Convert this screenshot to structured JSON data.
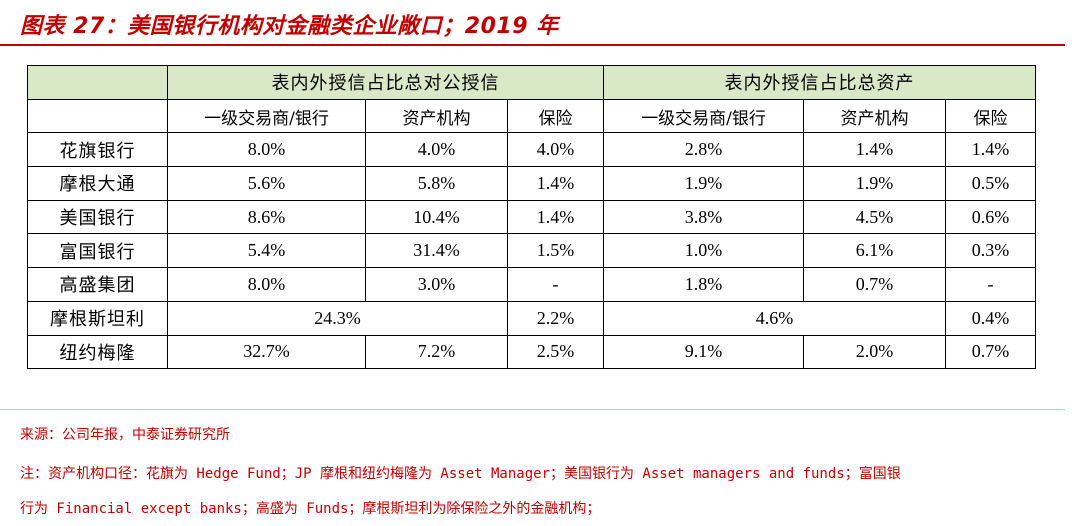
{
  "title": "图表 27：美国银行机构对金融类企业敞口；2019 年",
  "table": {
    "group_headers": [
      "表内外授信占比总对公授信",
      "表内外授信占比总资产"
    ],
    "sub_headers": [
      "一级交易商/银行",
      "资产机构",
      "保险",
      "一级交易商/银行",
      "资产机构",
      "保险"
    ],
    "rows": [
      {
        "name": "花旗银行",
        "values": [
          "8.0%",
          "4.0%",
          "4.0%",
          "2.8%",
          "1.4%",
          "1.4%"
        ]
      },
      {
        "name": "摩根大通",
        "values": [
          "5.6%",
          "5.8%",
          "1.4%",
          "1.9%",
          "1.9%",
          "0.5%"
        ]
      },
      {
        "name": "美国银行",
        "values": [
          "8.6%",
          "10.4%",
          "1.4%",
          "3.8%",
          "4.5%",
          "0.6%"
        ]
      },
      {
        "name": "富国银行",
        "values": [
          "5.4%",
          "31.4%",
          "1.5%",
          "1.0%",
          "6.1%",
          "0.3%"
        ]
      },
      {
        "name": "高盛集团",
        "values": [
          "8.0%",
          "3.0%",
          "-",
          "1.8%",
          "0.7%",
          "-"
        ]
      },
      {
        "name": "摩根斯坦利",
        "merged_corp": "24.3%",
        "corp_insurance": "2.2%",
        "merged_assets": "4.6%",
        "assets_insurance": "0.4%"
      },
      {
        "name": "纽约梅隆",
        "values": [
          "32.7%",
          "7.2%",
          "2.5%",
          "9.1%",
          "2.0%",
          "0.7%"
        ]
      }
    ]
  },
  "source": "来源：公司年报，中泰证券研究所",
  "note_line1": "注：资产机构口径：花旗为 Hedge Fund；JP 摩根和纽约梅隆为 Asset Manager；美国银行为 Asset managers and funds；富国银",
  "note_line2": "行为 Financial except banks；高盛为 Funds；摩根斯坦利为除保险之外的金融机构；",
  "colors": {
    "accent": "#c00000",
    "header_fill": "#d9e8c6"
  }
}
